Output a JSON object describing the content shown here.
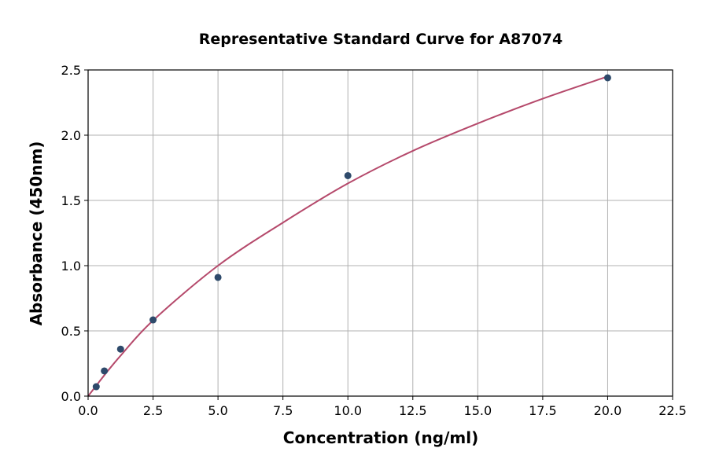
{
  "chart_data": {
    "type": "scatter",
    "title": "Representative Standard Curve for A87074",
    "xlabel": "Concentration (ng/ml)",
    "ylabel": "Absorbance (450nm)",
    "xlim": [
      0,
      22.5
    ],
    "ylim": [
      0,
      2.5
    ],
    "xticks": [
      "0.0",
      "2.5",
      "5.0",
      "7.5",
      "10.0",
      "12.5",
      "15.0",
      "17.5",
      "20.0",
      "22.5"
    ],
    "yticks": [
      "0.0",
      "0.5",
      "1.0",
      "1.5",
      "2.0",
      "2.5"
    ],
    "grid": true,
    "points": {
      "x": [
        0.3125,
        0.625,
        1.25,
        2.5,
        5,
        10,
        20
      ],
      "y": [
        0.072,
        0.193,
        0.36,
        0.584,
        0.91,
        1.69,
        2.44
      ]
    },
    "fit_curve": {
      "x": [
        0,
        0.3125,
        0.625,
        1.25,
        2.5,
        5,
        7.5,
        10,
        12.5,
        15,
        17.5,
        20
      ],
      "y": [
        0,
        0.08,
        0.16,
        0.31,
        0.58,
        1.0,
        1.33,
        1.63,
        1.88,
        2.09,
        2.28,
        2.45
      ]
    },
    "colors": {
      "points": "#2e4a6b",
      "curve": "#b5496b",
      "grid": "#b0b0b0"
    }
  }
}
